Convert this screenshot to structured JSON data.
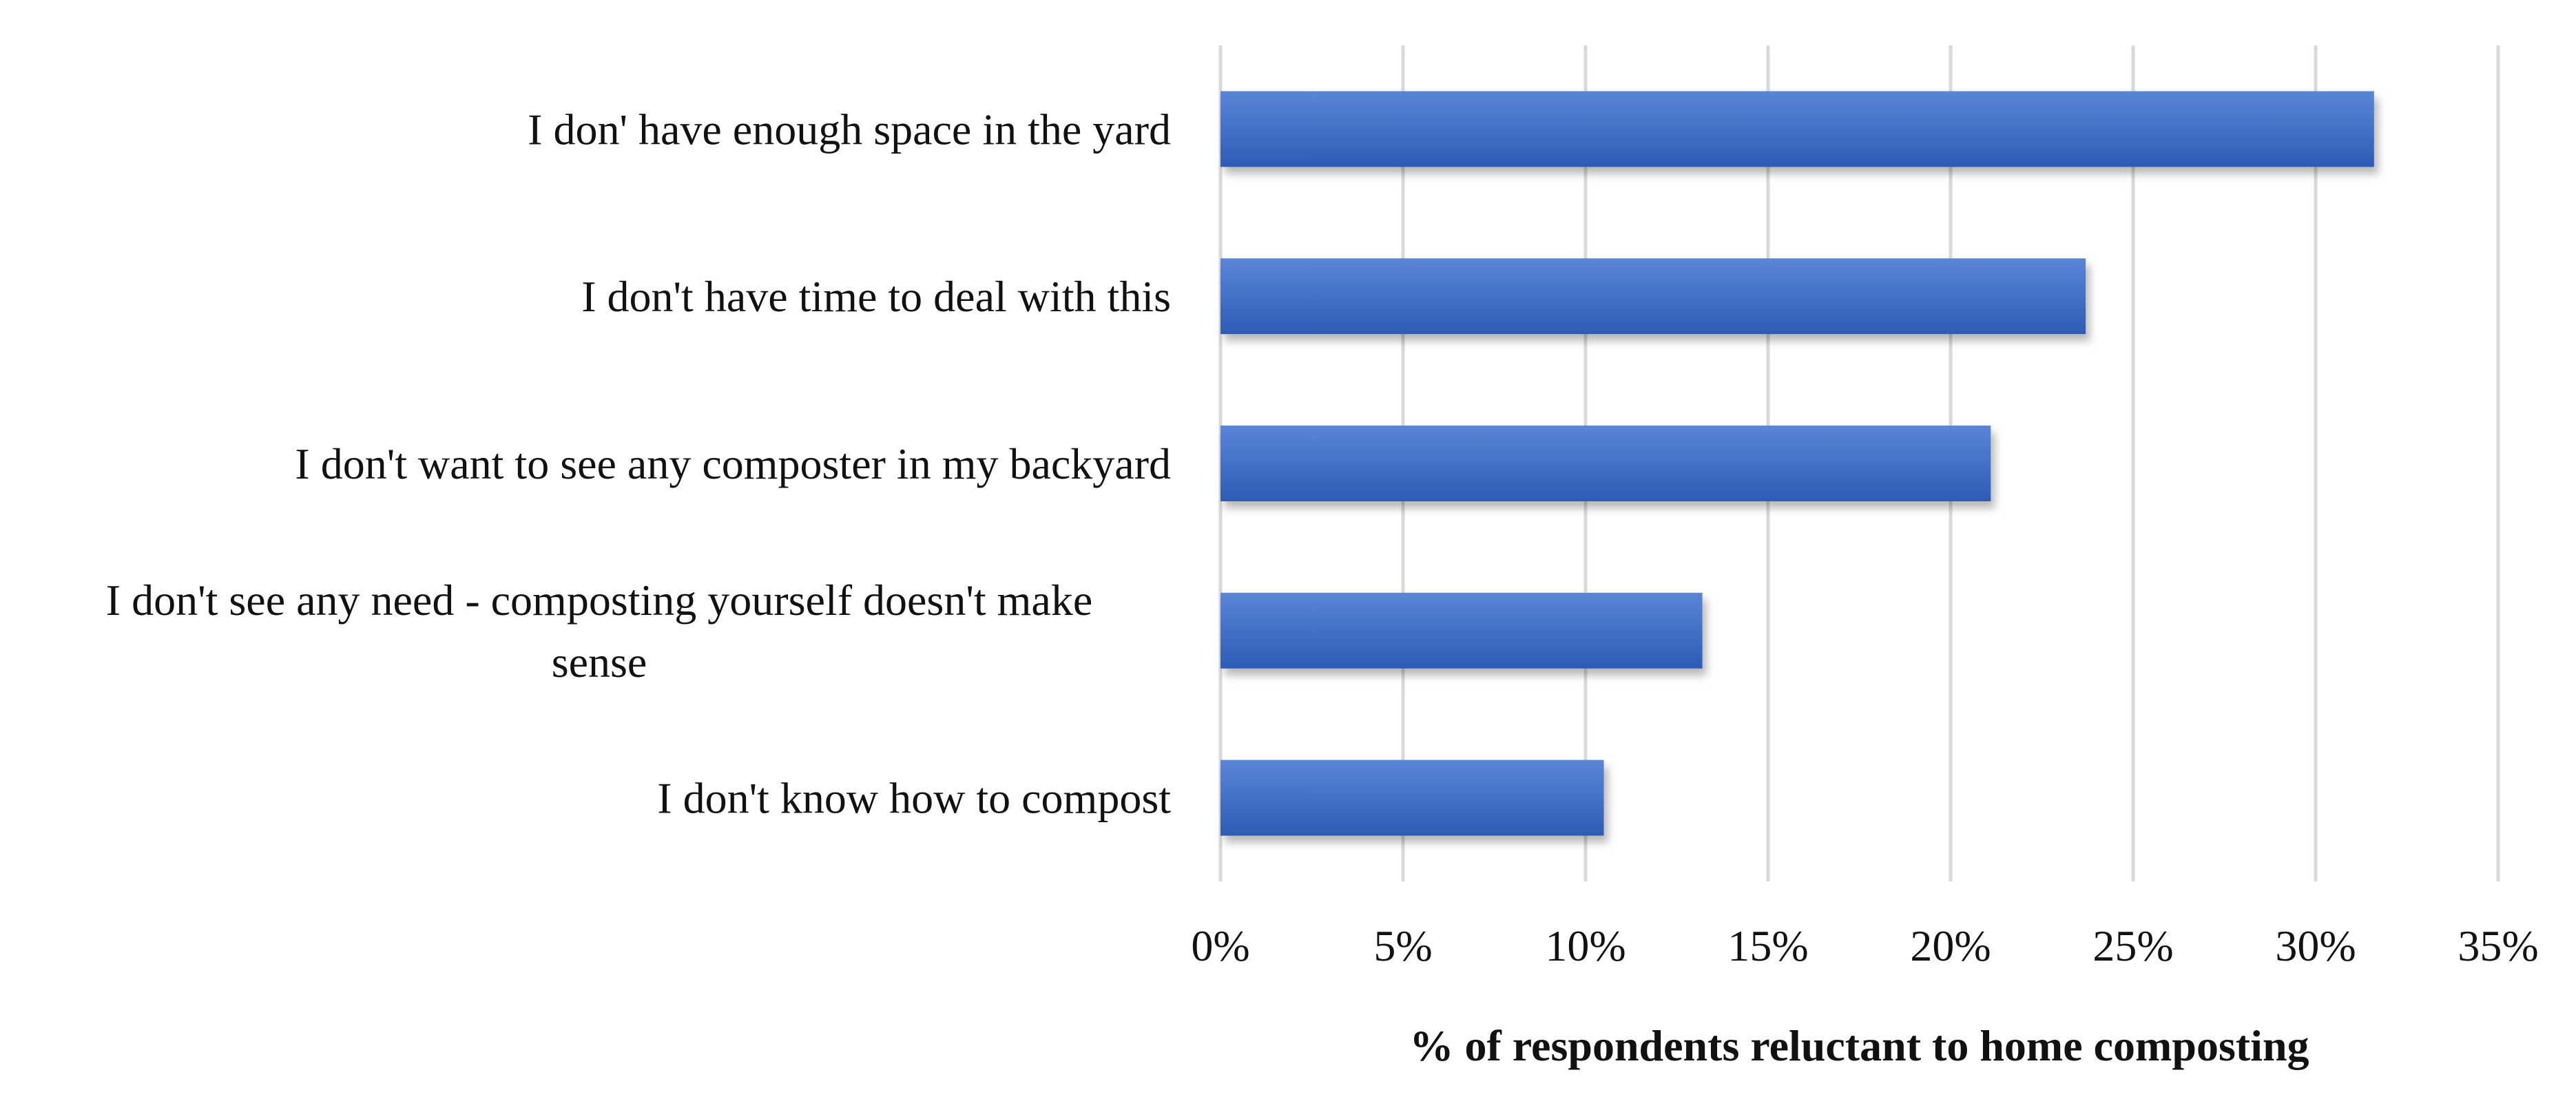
{
  "chart_data": {
    "type": "bar",
    "orientation": "horizontal",
    "categories": [
      "I don' have enough space in the yard",
      "I don't have time to deal with this",
      "I don't want to see any composter in my backyard",
      "I don't see any need - composting yourself doesn't make sense",
      "I don't know how to compost"
    ],
    "values": [
      31.6,
      23.7,
      21.1,
      13.2,
      10.5
    ],
    "xlabel": "% of respondents reluctant to home composting",
    "ylabel": "",
    "xlim": [
      0,
      35
    ],
    "ticks": [
      "0%",
      "5%",
      "10%",
      "15%",
      "20%",
      "25%",
      "30%",
      "35%"
    ],
    "grid": true,
    "legend": "none",
    "colors": {
      "bar": "#3c6cc4",
      "bar_light": "#5b86d6",
      "bar_dark": "#2d5bb5",
      "grid": "#d9d9d9"
    }
  }
}
